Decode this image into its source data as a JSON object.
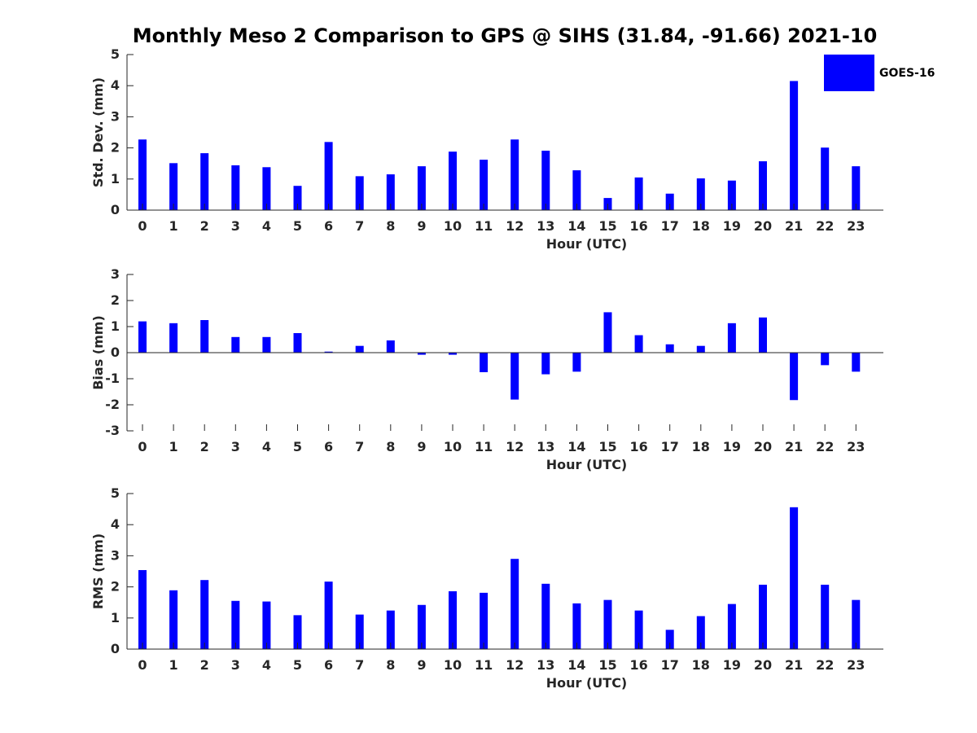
{
  "title": "Monthly Meso 2 Comparison to GPS @ SIHS (31.84, -91.66) 2021-10",
  "colors": {
    "bar": "#0000ff",
    "axis": "#262626",
    "text": "#262626"
  },
  "legend": {
    "label": "GOES-16",
    "position": "top-right"
  },
  "chart_data": [
    {
      "type": "bar",
      "title": "Monthly Meso 2 Comparison to GPS @ SIHS (31.84, -91.66) 2021-10",
      "xlabel": "Hour (UTC)",
      "ylabel": "Std. Dev. (mm)",
      "ylim": [
        0,
        5
      ],
      "yticks": [
        0,
        1,
        2,
        3,
        4,
        5
      ],
      "categories": [
        "0",
        "1",
        "2",
        "3",
        "4",
        "5",
        "6",
        "7",
        "8",
        "9",
        "10",
        "11",
        "12",
        "13",
        "14",
        "15",
        "16",
        "17",
        "18",
        "19",
        "20",
        "21",
        "22",
        "23"
      ],
      "series": [
        {
          "name": "GOES-16",
          "values": [
            2.27,
            1.51,
            1.83,
            1.44,
            1.38,
            0.78,
            2.19,
            1.09,
            1.15,
            1.41,
            1.88,
            1.62,
            2.27,
            1.91,
            1.28,
            0.39,
            1.05,
            0.53,
            1.02,
            0.95,
            1.57,
            4.15,
            2.01,
            1.41
          ]
        }
      ],
      "grid": false
    },
    {
      "type": "bar",
      "xlabel": "Hour (UTC)",
      "ylabel": "Bias (mm)",
      "ylim": [
        -3,
        3
      ],
      "yticks": [
        -3,
        -2,
        -1,
        0,
        1,
        2,
        3
      ],
      "categories": [
        "0",
        "1",
        "2",
        "3",
        "4",
        "5",
        "6",
        "7",
        "8",
        "9",
        "10",
        "11",
        "12",
        "13",
        "14",
        "15",
        "16",
        "17",
        "18",
        "19",
        "20",
        "21",
        "22",
        "23"
      ],
      "series": [
        {
          "name": "GOES-16",
          "values": [
            1.2,
            1.13,
            1.25,
            0.6,
            0.6,
            0.75,
            0.04,
            0.26,
            0.47,
            -0.08,
            -0.08,
            -0.75,
            -1.8,
            -0.83,
            -0.73,
            1.55,
            0.67,
            0.32,
            0.26,
            1.13,
            1.35,
            -1.82,
            -0.48,
            -0.73
          ]
        }
      ],
      "grid": false
    },
    {
      "type": "bar",
      "xlabel": "Hour (UTC)",
      "ylabel": "RMS (mm)",
      "ylim": [
        0,
        5
      ],
      "yticks": [
        0,
        1,
        2,
        3,
        4,
        5
      ],
      "categories": [
        "0",
        "1",
        "2",
        "3",
        "4",
        "5",
        "6",
        "7",
        "8",
        "9",
        "10",
        "11",
        "12",
        "13",
        "14",
        "15",
        "16",
        "17",
        "18",
        "19",
        "20",
        "21",
        "22",
        "23"
      ],
      "series": [
        {
          "name": "GOES-16",
          "values": [
            2.54,
            1.89,
            2.22,
            1.55,
            1.53,
            1.09,
            2.17,
            1.11,
            1.24,
            1.42,
            1.86,
            1.81,
            2.9,
            2.1,
            1.47,
            1.58,
            1.24,
            0.62,
            1.06,
            1.45,
            2.07,
            4.56,
            2.07,
            1.58
          ]
        }
      ],
      "grid": false
    }
  ]
}
